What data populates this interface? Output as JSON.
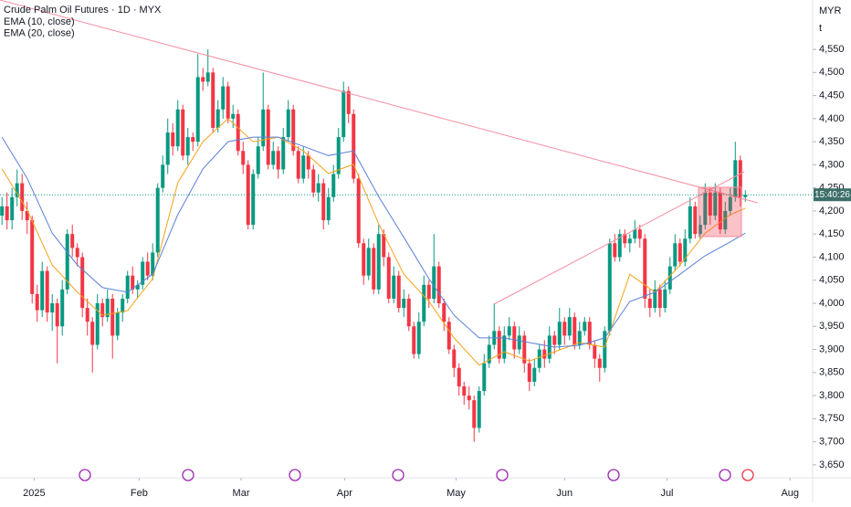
{
  "chart_data": {
    "type": "candlestick",
    "title": "Crude Palm Oil Futures · 1D · MYX",
    "currency": "MYR",
    "unit_label": "t",
    "countdown": "15:40:26",
    "up_color": "#089981",
    "down_color": "#f23645",
    "ylim": [
      3624,
      4657
    ],
    "xlim": [
      -0.4,
      161.4
    ],
    "grid": false,
    "yticks": [
      {
        "value": 3650,
        "label": "3,650"
      },
      {
        "value": 3700,
        "label": "3,700"
      },
      {
        "value": 3750,
        "label": "3,750"
      },
      {
        "value": 3800,
        "label": "3,800"
      },
      {
        "value": 3850,
        "label": "3,850"
      },
      {
        "value": 3900,
        "label": "3,900"
      },
      {
        "value": 3950,
        "label": "3,950"
      },
      {
        "value": 4000,
        "label": "4,000"
      },
      {
        "value": 4050,
        "label": "4,050"
      },
      {
        "value": 4100,
        "label": "4,100"
      },
      {
        "value": 4150,
        "label": "4,150"
      },
      {
        "value": 4200,
        "label": "4,200"
      },
      {
        "value": 4250,
        "label": "4,250"
      },
      {
        "value": 4300,
        "label": "4,300"
      },
      {
        "value": 4350,
        "label": "4,350"
      },
      {
        "value": 4400,
        "label": "4,400"
      },
      {
        "value": 4450,
        "label": "4,450"
      },
      {
        "value": 4500,
        "label": "4,500"
      },
      {
        "value": 4550,
        "label": "4,550"
      }
    ],
    "xticks": [
      {
        "value": 6.4,
        "label": "2025"
      },
      {
        "value": 27.3,
        "label": "Feb"
      },
      {
        "value": 47.6,
        "label": "Mar"
      },
      {
        "value": 68.2,
        "label": "Apr"
      },
      {
        "value": 90.4,
        "label": "May"
      },
      {
        "value": 112,
        "label": "Jun"
      },
      {
        "value": 132.4,
        "label": "Jul"
      },
      {
        "value": 156.9,
        "label": "Aug"
      }
    ],
    "open": [
      4190,
      4210,
      4180,
      4230,
      4260,
      4200,
      4180,
      4020,
      3985,
      4070,
      3980,
      4000,
      3950,
      4030,
      4150,
      4120,
      4100,
      3990,
      3960,
      3910,
      4000,
      3970,
      4010,
      3930,
      3980,
      4010,
      4060,
      4030,
      4040,
      4090,
      4060,
      4110,
      4250,
      4300,
      4370,
      4340,
      4420,
      4320,
      4360,
      4350,
      4490,
      4480,
      4500,
      4380,
      4420,
      4470,
      4400,
      4410,
      4330,
      4300,
      4170,
      4280,
      4340,
      4420,
      4300,
      4330,
      4290,
      4360,
      4420,
      4330,
      4270,
      4320,
      4290,
      4240,
      4260,
      4180,
      4230,
      4280,
      4360,
      4460,
      4410,
      4270,
      4130,
      4060,
      4120,
      4030,
      4150,
      4100,
      4010,
      4060,
      3990,
      4010,
      3950,
      3890,
      3960,
      4040,
      4010,
      4080,
      4000,
      3960,
      3900,
      3860,
      3820,
      3800,
      3790,
      3730,
      3810,
      3870,
      3910,
      3940,
      3880,
      3930,
      3950,
      3900,
      3930,
      3870,
      3830,
      3860,
      3900,
      3880,
      3930,
      3910,
      3960,
      3930,
      3970,
      3910,
      3940,
      3960,
      3910,
      3880,
      3860,
      3940,
      4130,
      4100,
      4150,
      4130,
      4140,
      4160,
      4140,
      4010,
      3990,
      4030,
      3990,
      4030,
      4080,
      4130,
      4090,
      4140,
      4210,
      4150,
      4170,
      4240,
      4190,
      4240,
      4160,
      4200,
      4230,
      4310,
      4230
    ],
    "high": [
      4230,
      4240,
      4250,
      4290,
      4280,
      4220,
      4190,
      4040,
      4090,
      4080,
      4020,
      4010,
      4050,
      4160,
      4170,
      4130,
      4110,
      4010,
      3970,
      4020,
      4010,
      4030,
      4020,
      3990,
      4020,
      4070,
      4080,
      4050,
      4100,
      4110,
      4130,
      4260,
      4320,
      4400,
      4390,
      4440,
      4430,
      4380,
      4370,
      4540,
      4510,
      4550,
      4510,
      4440,
      4490,
      4480,
      4430,
      4420,
      4350,
      4310,
      4290,
      4360,
      4500,
      4430,
      4350,
      4340,
      4380,
      4440,
      4430,
      4340,
      4340,
      4330,
      4300,
      4280,
      4270,
      4250,
      4300,
      4380,
      4480,
      4470,
      4420,
      4280,
      4140,
      4140,
      4130,
      4170,
      4160,
      4110,
      4080,
      4070,
      4030,
      4020,
      3960,
      3980,
      4060,
      4050,
      4150,
      4090,
      4010,
      3970,
      3910,
      3870,
      3830,
      3820,
      3800,
      3820,
      3890,
      3930,
      4000,
      3950,
      3950,
      3970,
      3960,
      3950,
      3940,
      3880,
      3880,
      3910,
      3920,
      3950,
      3940,
      3990,
      3970,
      3990,
      3980,
      3960,
      3970,
      3970,
      3920,
      3890,
      3950,
      4140,
      4150,
      4160,
      4160,
      4150,
      4180,
      4170,
      4150,
      4030,
      4050,
      4040,
      4050,
      4100,
      4150,
      4140,
      4160,
      4230,
      4220,
      4190,
      4260,
      4250,
      4260,
      4250,
      4220,
      4250,
      4350,
      4320,
      4245
    ],
    "low": [
      4170,
      4160,
      4160,
      4210,
      4180,
      4150,
      4000,
      3960,
      3970,
      3960,
      3940,
      3870,
      3930,
      4020,
      4100,
      4080,
      3970,
      3930,
      3850,
      3900,
      3950,
      3960,
      3880,
      3920,
      3960,
      4000,
      4020,
      4010,
      4030,
      4050,
      4050,
      4100,
      4240,
      4280,
      4320,
      4330,
      4310,
      4300,
      4330,
      4340,
      4460,
      4470,
      4370,
      4370,
      4400,
      4390,
      4380,
      4320,
      4280,
      4160,
      4160,
      4270,
      4330,
      4290,
      4290,
      4270,
      4280,
      4350,
      4320,
      4260,
      4260,
      4270,
      4230,
      4220,
      4160,
      4170,
      4220,
      4270,
      4350,
      4390,
      4260,
      4120,
      4040,
      4050,
      4020,
      4020,
      4080,
      4000,
      4000,
      3980,
      3970,
      3940,
      3880,
      3880,
      3950,
      3990,
      4000,
      3990,
      3940,
      3890,
      3840,
      3800,
      3780,
      3770,
      3700,
      3720,
      3800,
      3860,
      3900,
      3870,
      3870,
      3920,
      3880,
      3890,
      3850,
      3810,
      3820,
      3850,
      3860,
      3870,
      3890,
      3900,
      3910,
      3920,
      3900,
      3900,
      3930,
      3900,
      3860,
      3830,
      3850,
      3930,
      4090,
      4090,
      4120,
      4110,
      4130,
      4120,
      3990,
      3970,
      3980,
      3970,
      3980,
      4020,
      4070,
      4080,
      4080,
      4130,
      4140,
      4140,
      4160,
      4170,
      4180,
      4150,
      4150,
      4190,
      4220,
      4210,
      4220
    ],
    "close": [
      4210,
      4180,
      4230,
      4260,
      4200,
      4180,
      4020,
      3985,
      4070,
      3980,
      4000,
      3950,
      4030,
      4150,
      4120,
      4100,
      3990,
      3960,
      3910,
      4000,
      3970,
      4010,
      3930,
      3980,
      4010,
      4060,
      4030,
      4040,
      4090,
      4060,
      4110,
      4250,
      4300,
      4370,
      4340,
      4420,
      4320,
      4360,
      4350,
      4490,
      4480,
      4500,
      4380,
      4420,
      4470,
      4400,
      4410,
      4330,
      4300,
      4170,
      4280,
      4340,
      4420,
      4300,
      4330,
      4290,
      4360,
      4420,
      4330,
      4270,
      4320,
      4290,
      4240,
      4260,
      4180,
      4230,
      4280,
      4360,
      4460,
      4410,
      4270,
      4130,
      4060,
      4120,
      4030,
      4150,
      4100,
      4010,
      4060,
      3990,
      4010,
      3950,
      3890,
      3960,
      4040,
      4010,
      4080,
      4000,
      3960,
      3900,
      3860,
      3820,
      3800,
      3790,
      3730,
      3810,
      3870,
      3910,
      3940,
      3880,
      3930,
      3950,
      3900,
      3930,
      3870,
      3830,
      3860,
      3900,
      3880,
      3930,
      3910,
      3960,
      3930,
      3970,
      3910,
      3940,
      3960,
      3910,
      3880,
      3860,
      3940,
      4130,
      4100,
      4150,
      4130,
      4140,
      4160,
      4140,
      4010,
      3990,
      4030,
      3990,
      4030,
      4080,
      4130,
      4090,
      4140,
      4210,
      4150,
      4170,
      4240,
      4190,
      4240,
      4160,
      4200,
      4230,
      4310,
      4230,
      4235
    ],
    "overlays": [
      {
        "name": "EMA (10, close)",
        "color": "#f5a31a",
        "x": [
          0,
          5,
          10,
          15,
          20,
          25,
          30,
          35,
          40,
          45,
          50,
          55,
          60,
          65,
          70,
          75,
          80,
          85,
          90,
          95,
          100,
          105,
          110,
          115,
          120,
          125,
          130,
          135,
          140,
          145,
          148
        ],
        "values": [
          4291,
          4202,
          4083,
          4024,
          3974,
          3984,
          4053,
          4261,
          4350,
          4400,
          4350,
          4360,
          4330,
          4281,
          4301,
          4172,
          4063,
          4004,
          3925,
          3866,
          3895,
          3875,
          3895,
          3915,
          3905,
          4063,
          4024,
          4083,
          4152,
          4192,
          4206
        ]
      },
      {
        "name": "EMA (20, close)",
        "color": "#5b7fd6",
        "x": [
          0,
          5,
          10,
          15,
          20,
          25,
          30,
          35,
          40,
          45,
          50,
          55,
          60,
          65,
          70,
          75,
          80,
          85,
          90,
          95,
          100,
          105,
          110,
          115,
          120,
          125,
          130,
          135,
          140,
          145,
          148
        ],
        "values": [
          4360,
          4271,
          4152,
          4083,
          4034,
          4024,
          4063,
          4192,
          4291,
          4350,
          4360,
          4360,
          4340,
          4320,
          4330,
          4231,
          4143,
          4053,
          3974,
          3925,
          3925,
          3915,
          3905,
          3909,
          3925,
          4004,
          4024,
          4063,
          4103,
          4133,
          4152
        ]
      }
    ]
  }
}
